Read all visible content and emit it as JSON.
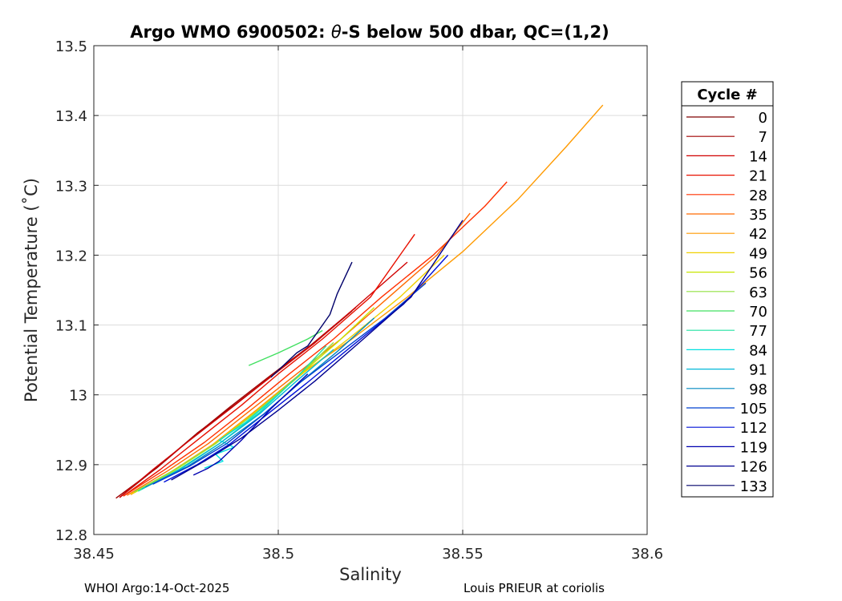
{
  "chart_data": {
    "type": "line",
    "title_prefix": "Argo WMO 6900502: ",
    "title_theta": "θ",
    "title_suffix": "-S below 500 dbar,  QC=(1,2)",
    "xlabel": "Salinity",
    "ylabel": "Potential Temperature (˚C)",
    "xlim": [
      38.45,
      38.6
    ],
    "ylim": [
      12.8,
      13.5
    ],
    "xticks": [
      38.45,
      38.5,
      38.55,
      38.6
    ],
    "xtick_labels": [
      "38.45",
      "38.5",
      "38.55",
      "38.6"
    ],
    "yticks": [
      12.8,
      12.9,
      13.0,
      13.1,
      13.2,
      13.3,
      13.4,
      13.5
    ],
    "ytick_labels": [
      "12.8",
      "12.9",
      "13",
      "13.1",
      "13.2",
      "13.3",
      "13.4",
      "13.5"
    ],
    "grid": true,
    "legend": {
      "title": "Cycle #",
      "placement": "right",
      "entries": [
        "0",
        "7",
        "14",
        "21",
        "28",
        "35",
        "42",
        "49",
        "56",
        "63",
        "70",
        "77",
        "84",
        "91",
        "98",
        "105",
        "112",
        "119",
        "126",
        "133"
      ],
      "colors": [
        "#7f0000",
        "#a00000",
        "#d00000",
        "#e81000",
        "#ff3000",
        "#ff6a00",
        "#ff9a00",
        "#f0d000",
        "#c8e600",
        "#90e040",
        "#40e060",
        "#20e0a0",
        "#00e0e0",
        "#00b8d8",
        "#0088c0",
        "#0040d0",
        "#0010d8",
        "#0000b0",
        "#000090",
        "#00006a"
      ]
    },
    "series": [
      {
        "color": "#7f0000",
        "x": [
          38.457,
          38.468,
          38.478,
          38.488,
          38.499,
          38.51,
          38.52
        ],
        "y": [
          12.853,
          12.9,
          12.945,
          12.985,
          13.03,
          13.075,
          13.12
        ]
      },
      {
        "color": "#a00000",
        "x": [
          38.456,
          38.467,
          38.477,
          38.487,
          38.498,
          38.509,
          38.521
        ],
        "y": [
          12.852,
          12.895,
          12.94,
          12.983,
          13.028,
          13.072,
          13.125
        ]
      },
      {
        "color": "#d00000",
        "x": [
          38.457,
          38.466,
          38.476,
          38.487,
          38.498,
          38.51,
          38.522,
          38.535
        ],
        "y": [
          12.853,
          12.893,
          12.935,
          12.98,
          13.026,
          13.075,
          13.13,
          13.19
        ]
      },
      {
        "color": "#e81000",
        "x": [
          38.458,
          38.468,
          38.478,
          38.49,
          38.5,
          38.512,
          38.525,
          38.537
        ],
        "y": [
          12.855,
          12.893,
          12.935,
          12.985,
          13.03,
          13.08,
          13.14,
          13.23
        ]
      },
      {
        "color": "#ff3000",
        "x": [
          38.458,
          38.469,
          38.48,
          38.492,
          38.503,
          38.515,
          38.528,
          38.542,
          38.556,
          38.562
        ],
        "y": [
          12.855,
          12.892,
          12.932,
          12.982,
          13.03,
          13.08,
          13.14,
          13.2,
          13.27,
          13.305
        ]
      },
      {
        "color": "#ff6a00",
        "x": [
          38.459,
          38.47,
          38.481,
          38.493,
          38.505,
          38.517,
          38.53,
          38.543,
          38.552
        ],
        "y": [
          12.856,
          12.891,
          12.93,
          12.98,
          13.03,
          13.08,
          13.14,
          13.2,
          13.26
        ]
      },
      {
        "color": "#ff9a00",
        "x": [
          38.46,
          38.471,
          38.482,
          38.494,
          38.506,
          38.52,
          38.535,
          38.55,
          38.565,
          38.578,
          38.588
        ],
        "y": [
          12.857,
          12.89,
          12.928,
          12.978,
          13.03,
          13.08,
          13.14,
          13.205,
          13.28,
          13.355,
          13.415
        ]
      },
      {
        "color": "#f0d000",
        "x": [
          38.46,
          38.471,
          38.482,
          38.494,
          38.506,
          38.519,
          38.533,
          38.545
        ],
        "y": [
          12.858,
          12.89,
          12.927,
          12.976,
          13.028,
          13.08,
          13.14,
          13.2
        ]
      },
      {
        "color": "#c8e600",
        "x": [
          38.461,
          38.472,
          38.483,
          38.494,
          38.505,
          38.516,
          38.526
        ],
        "y": [
          12.86,
          12.892,
          12.93,
          12.975,
          13.025,
          13.075,
          13.125
        ]
      },
      {
        "color": "#90e040",
        "x": [
          38.461,
          38.472,
          38.483,
          38.494,
          38.505,
          38.515
        ],
        "y": [
          12.861,
          12.893,
          12.93,
          12.975,
          13.025,
          13.075
        ]
      },
      {
        "color": "#40e060",
        "x": [
          38.492,
          38.5,
          38.508,
          38.512
        ],
        "y": [
          13.042,
          13.06,
          13.08,
          13.092
        ]
      },
      {
        "color": "#20e0a0",
        "x": [
          38.462,
          38.473,
          38.484,
          38.495,
          38.505,
          38.513
        ],
        "y": [
          12.862,
          12.893,
          12.93,
          12.975,
          13.025,
          13.07
        ]
      },
      {
        "color": "#00e0e0",
        "x": [
          38.48,
          38.485,
          38.483,
          38.488,
          38.484,
          38.491,
          38.5
        ],
        "y": [
          12.895,
          12.905,
          12.915,
          12.925,
          12.935,
          12.96,
          13.0
        ]
      },
      {
        "color": "#00b8d8",
        "x": [
          38.463,
          38.474,
          38.484,
          38.495,
          38.505,
          38.515
        ],
        "y": [
          12.865,
          12.895,
          12.93,
          12.973,
          13.02,
          13.065
        ]
      },
      {
        "color": "#0088c0",
        "x": [
          38.464,
          38.475,
          38.485,
          38.496,
          38.506,
          38.516,
          38.526
        ],
        "y": [
          12.868,
          12.896,
          12.93,
          12.972,
          13.018,
          13.062,
          13.11
        ]
      },
      {
        "color": "#0040d0",
        "x": [
          38.466,
          38.476,
          38.486,
          38.496,
          38.506,
          38.517,
          38.529,
          38.54
        ],
        "y": [
          12.872,
          12.898,
          12.93,
          12.972,
          13.018,
          13.062,
          13.11,
          13.16
        ]
      },
      {
        "color": "#0010d8",
        "x": [
          38.469,
          38.478,
          38.487,
          38.497,
          38.508,
          38.52,
          38.534,
          38.546
        ],
        "y": [
          12.875,
          12.9,
          12.93,
          12.972,
          13.018,
          13.07,
          13.13,
          13.2
        ]
      },
      {
        "color": "#0000b0",
        "x": [
          38.477,
          38.481,
          38.484,
          38.49,
          38.498,
          38.508
        ],
        "y": [
          12.885,
          12.895,
          12.905,
          12.935,
          12.98,
          13.03
        ]
      },
      {
        "color": "#000090",
        "x": [
          38.471,
          38.48,
          38.49,
          38.5,
          38.51,
          38.522,
          38.536,
          38.55
        ],
        "y": [
          12.878,
          12.905,
          12.938,
          12.978,
          13.02,
          13.075,
          13.14,
          13.25
        ]
      },
      {
        "color": "#00006a",
        "x": [
          38.498,
          38.502,
          38.505,
          38.508,
          38.51,
          38.512,
          38.514,
          38.516,
          38.52
        ],
        "y": [
          13.025,
          13.045,
          13.06,
          13.07,
          13.085,
          13.1,
          13.115,
          13.145,
          13.19
        ]
      }
    ]
  },
  "footer": {
    "left": "WHOI Argo:14-Oct-2025",
    "right": "Louis PRIEUR at coriolis"
  }
}
